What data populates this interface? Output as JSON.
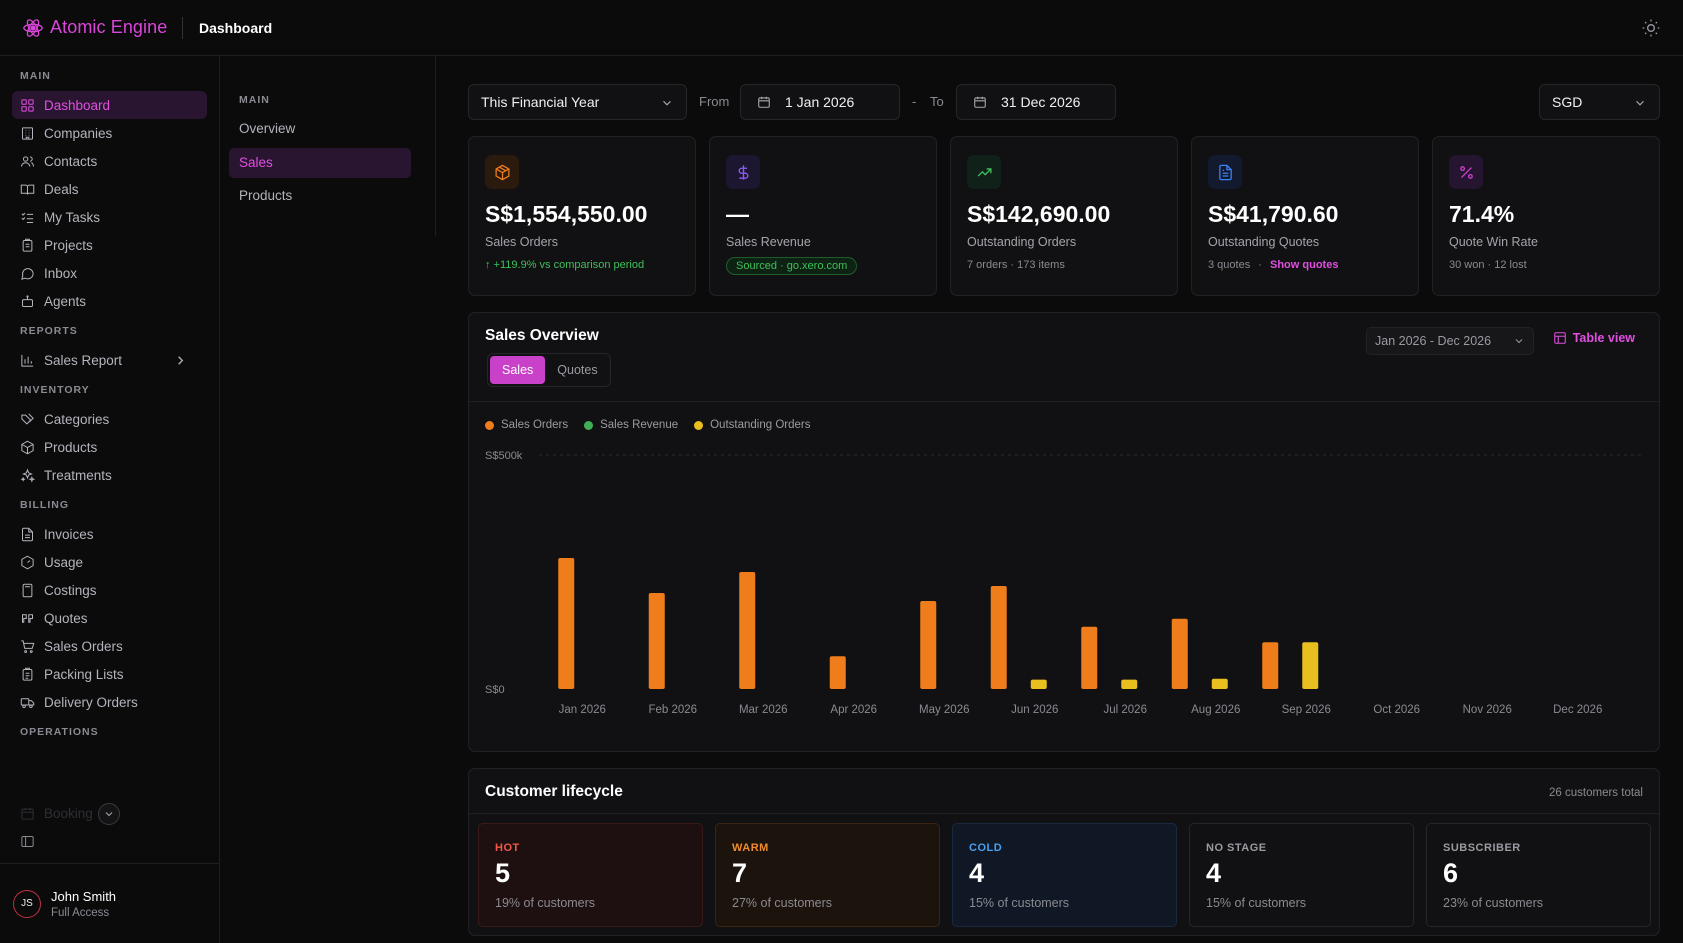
{
  "app": {
    "name": "Atomic Engine",
    "page_title": "Dashboard"
  },
  "colors": {
    "accent": "#d946d9",
    "active_bg": "#2a1530",
    "sales_orders": "#f07d1c",
    "sales_revenue": "#3fae55",
    "outstanding_orders": "#e8bf1f"
  },
  "sidebar": {
    "sections": [
      {
        "label": "MAIN",
        "items": [
          {
            "label": "Dashboard",
            "icon": "grid-icon",
            "active": true
          },
          {
            "label": "Companies",
            "icon": "building-icon"
          },
          {
            "label": "Contacts",
            "icon": "users-icon"
          },
          {
            "label": "Deals",
            "icon": "book-open-icon"
          },
          {
            "label": "My Tasks",
            "icon": "list-checks-icon"
          },
          {
            "label": "Projects",
            "icon": "clipboard-icon"
          },
          {
            "label": "Inbox",
            "icon": "message-icon"
          },
          {
            "label": "Agents",
            "icon": "bot-icon"
          }
        ]
      },
      {
        "label": "REPORTS",
        "items": [
          {
            "label": "Sales Report",
            "icon": "bar-chart-icon",
            "chevron": true
          }
        ]
      },
      {
        "label": "INVENTORY",
        "items": [
          {
            "label": "Categories",
            "icon": "tags-icon"
          },
          {
            "label": "Products",
            "icon": "package-icon"
          },
          {
            "label": "Treatments",
            "icon": "sparkles-icon"
          }
        ]
      },
      {
        "label": "BILLING",
        "items": [
          {
            "label": "Invoices",
            "icon": "file-text-icon"
          },
          {
            "label": "Usage",
            "icon": "gauge-icon"
          },
          {
            "label": "Costings",
            "icon": "calculator-icon"
          },
          {
            "label": "Quotes",
            "icon": "quote-icon"
          },
          {
            "label": "Sales Orders",
            "icon": "cart-icon"
          },
          {
            "label": "Packing Lists",
            "icon": "clipboard-list-icon"
          },
          {
            "label": "Delivery Orders",
            "icon": "truck-icon"
          }
        ]
      },
      {
        "label": "OPERATIONS",
        "items": []
      }
    ],
    "faded_item": "Booking",
    "user": {
      "initials": "JS",
      "name": "John Smith",
      "role": "Full Access"
    }
  },
  "subnav": {
    "label": "MAIN",
    "items": [
      "Overview",
      "Sales",
      "Products"
    ],
    "active": "Sales"
  },
  "filters": {
    "period": "This Financial Year",
    "from_label": "From",
    "from_date": "1 Jan 2026",
    "dash": "-",
    "to_label": "To",
    "to_date": "31 Dec 2026",
    "currency": "SGD"
  },
  "cards": [
    {
      "value": "S$1,554,550.00",
      "label": "Sales Orders",
      "meta": "↑ +119.9% vs comparison period",
      "icon": "package-icon",
      "icon_color": "#f07d1c",
      "icon_bg": "#2a1b0e"
    },
    {
      "value": "—",
      "label": "Sales Revenue",
      "meta": "Sourced · go.xero.com",
      "icon": "dollar-icon",
      "icon_color": "#8b5cf6",
      "icon_bg": "#1c1630"
    },
    {
      "value": "S$142,690.00",
      "label": "Outstanding Orders",
      "meta": "7 orders · 173 items",
      "icon": "trend-up-icon",
      "icon_color": "#3fbf5a",
      "icon_bg": "#10211a"
    },
    {
      "value": "S$41,790.60",
      "label": "Outstanding Quotes",
      "meta": "3 quotes",
      "meta_link": "Show quotes",
      "meta_sep": "·",
      "icon": "document-icon",
      "icon_color": "#3b82f6",
      "icon_bg": "#121a30"
    },
    {
      "value": "71.4%",
      "label": "Quote Win Rate",
      "meta": "30 won · 12 lost",
      "icon": "percent-icon",
      "icon_color": "#c940c9",
      "icon_bg": "#251530"
    }
  ],
  "sales_overview": {
    "title": "Sales Overview",
    "tabs": [
      "Sales",
      "Quotes"
    ],
    "active_tab": "Sales",
    "range": "Jan 2026 - Dec 2026",
    "table_view": "Table view"
  },
  "chart_data": {
    "type": "bar",
    "categories": [
      "Jan 2026",
      "Feb 2026",
      "Mar 2026",
      "Apr 2026",
      "May 2026",
      "Jun 2026",
      "Jul 2026",
      "Aug 2026",
      "Sep 2026",
      "Oct 2026",
      "Nov 2026",
      "Dec 2026"
    ],
    "series": [
      {
        "name": "Sales Orders",
        "color": "#f07d1c",
        "values": [
          280000,
          205000,
          250000,
          70000,
          188000,
          220000,
          133000,
          150000,
          100000,
          0,
          0,
          0
        ]
      },
      {
        "name": "Sales Revenue",
        "color": "#3fae55",
        "values": [
          0,
          0,
          0,
          0,
          0,
          0,
          0,
          0,
          0,
          0,
          0,
          0
        ]
      },
      {
        "name": "Outstanding Orders",
        "color": "#e8bf1f",
        "values": [
          0,
          0,
          0,
          0,
          0,
          20000,
          20000,
          22000,
          100000,
          0,
          0,
          0
        ]
      }
    ],
    "yticks": [
      "S$500k",
      "S$0"
    ],
    "ylim": [
      0,
      500000
    ],
    "legend": "top-left",
    "grid": false
  },
  "lifecycle": {
    "title": "Customer lifecycle",
    "total": "26 customers total",
    "stages": [
      {
        "name": "HOT",
        "count": "5",
        "pct": "19% of customers",
        "color": "#ef5a4a",
        "bg": "#1e1010",
        "border": "#3a1a18"
      },
      {
        "name": "WARM",
        "count": "7",
        "pct": "27% of customers",
        "color": "#f08a2c",
        "bg": "#1c130c",
        "border": "#3a2414"
      },
      {
        "name": "COLD",
        "count": "4",
        "pct": "15% of customers",
        "color": "#4aa0f0",
        "bg": "#0f1824",
        "border": "#1a2a3e"
      },
      {
        "name": "NO STAGE",
        "count": "4",
        "pct": "15% of customers",
        "color": "#9a9aa2",
        "bg": "#111113",
        "border": "#26262a"
      },
      {
        "name": "SUBSCRIBER",
        "count": "6",
        "pct": "23% of customers",
        "color": "#9a9aa2",
        "bg": "#111113",
        "border": "#26262a"
      }
    ]
  }
}
